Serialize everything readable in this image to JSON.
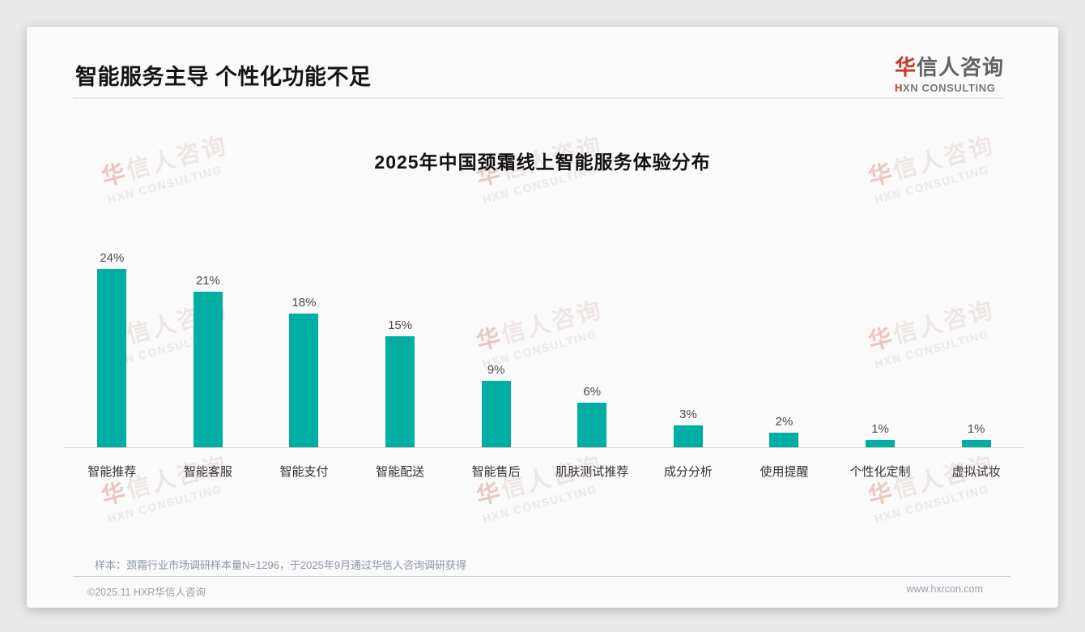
{
  "page": {
    "title": "智能服务主导 个性化功能不足",
    "logo": {
      "cn_first": "华",
      "cn_rest": "信人咨询",
      "en_first": "H",
      "en_rest": "XN CONSULTING"
    },
    "watermark": {
      "cn_first": "华",
      "cn_rest": "信人咨询",
      "en": "HXN CONSULTING"
    },
    "note": "样本：颈霜行业市场调研样本量N=1296，于2025年9月通过华信人咨询调研获得",
    "footer": {
      "copyright": "©2025.11 HXR华信人咨询",
      "website": "www.hxrcon.com"
    }
  },
  "chart_data": {
    "type": "bar",
    "title": "2025年中国颈霜线上智能服务体验分布",
    "categories": [
      "智能推荐",
      "智能客服",
      "智能支付",
      "智能配送",
      "智能售后",
      "肌肤测试推荐",
      "成分分析",
      "使用提醒",
      "个性化定制",
      "虚拟试妆"
    ],
    "values": [
      24,
      21,
      18,
      15,
      9,
      6,
      3,
      2,
      1,
      1
    ],
    "value_labels": [
      "24%",
      "21%",
      "18%",
      "15%",
      "9%",
      "6%",
      "3%",
      "2%",
      "1%",
      "1%"
    ],
    "unit": "%",
    "bar_color": "#00AEA4",
    "axis_color": "#d2d2d2",
    "ylim": [
      0,
      25
    ],
    "grid": false,
    "legend": false
  }
}
